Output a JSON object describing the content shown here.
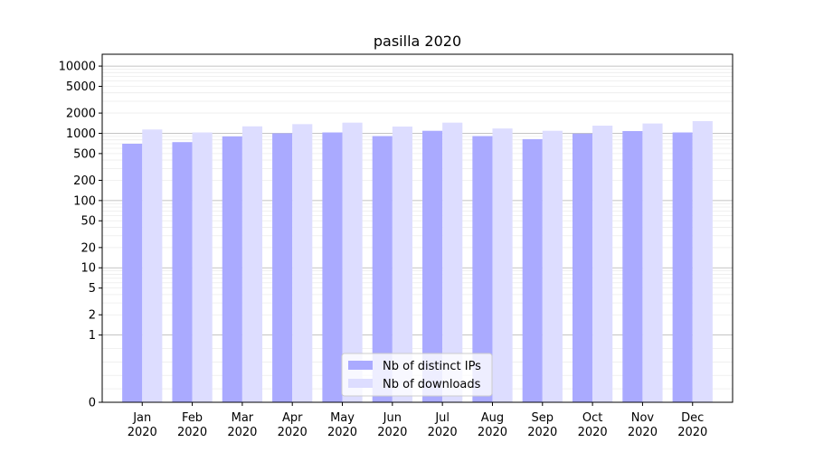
{
  "chart_data": {
    "type": "bar",
    "title": "pasilla 2020",
    "xlabel": "",
    "ylabel": "",
    "y_scale": "symlog",
    "ylim": [
      0,
      15000
    ],
    "y_ticks": [
      0,
      1,
      2,
      5,
      10,
      20,
      50,
      100,
      200,
      500,
      1000,
      2000,
      5000,
      10000
    ],
    "grid": true,
    "legend_position": "bottom-center",
    "categories": [
      [
        "Jan",
        "2020"
      ],
      [
        "Feb",
        "2020"
      ],
      [
        "Mar",
        "2020"
      ],
      [
        "Apr",
        "2020"
      ],
      [
        "May",
        "2020"
      ],
      [
        "Jun",
        "2020"
      ],
      [
        "Jul",
        "2020"
      ],
      [
        "Aug",
        "2020"
      ],
      [
        "Sep",
        "2020"
      ],
      [
        "Oct",
        "2020"
      ],
      [
        "Nov",
        "2020"
      ],
      [
        "Dec",
        "2020"
      ]
    ],
    "series": [
      {
        "name": "Nb of distinct IPs",
        "color": "#aaaaff",
        "values": [
          700,
          740,
          900,
          1000,
          1030,
          910,
          1090,
          910,
          820,
          990,
          1080,
          1030
        ]
      },
      {
        "name": "Nb of downloads",
        "color": "#ddddff",
        "values": [
          1140,
          1030,
          1270,
          1370,
          1440,
          1260,
          1440,
          1180,
          1090,
          1300,
          1400,
          1520
        ]
      }
    ]
  }
}
